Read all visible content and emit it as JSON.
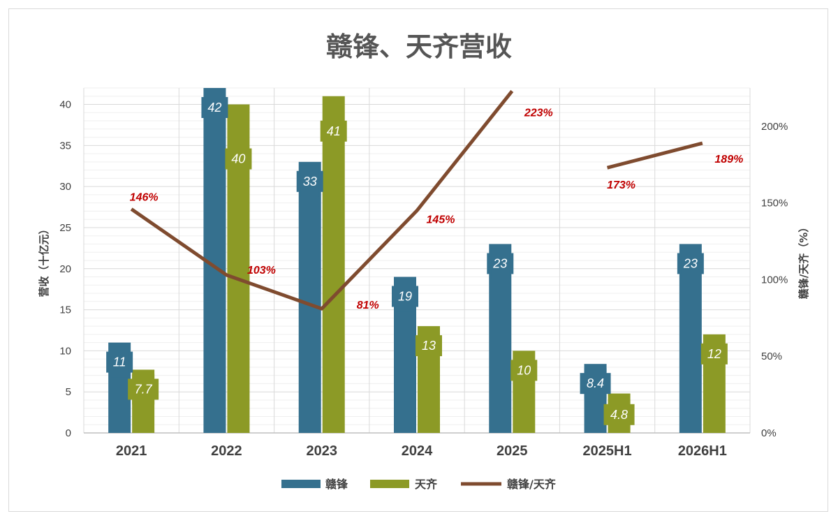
{
  "chart_data": {
    "type": "bar",
    "title": "赣锋、天齐营收",
    "ylabel": "营收（十亿元）",
    "y2label": "赣锋/天齐（%）",
    "ylim": [
      0,
      42
    ],
    "y2lim": [
      0,
      225
    ],
    "yticks": [
      "0",
      "5",
      "10",
      "15",
      "20",
      "25",
      "30",
      "35",
      "40"
    ],
    "y2ticks": [
      "0%",
      "50%",
      "100%",
      "150%",
      "200%"
    ],
    "categories": [
      "2021",
      "2022",
      "2023",
      "2024",
      "2025",
      "2025H1",
      "2026H1"
    ],
    "series": [
      {
        "name": "赣锋",
        "type": "bar",
        "color": "#35708e",
        "values": [
          11,
          42,
          33,
          19,
          23,
          8.4,
          23
        ],
        "labels": [
          "11",
          "42",
          "33",
          "19",
          "23",
          "8.4",
          "23"
        ]
      },
      {
        "name": "天齐",
        "type": "bar",
        "color": "#8c9a26",
        "values": [
          7.7,
          40,
          41,
          13,
          10,
          4.8,
          12
        ],
        "labels": [
          "7.7",
          "40",
          "41",
          "13",
          "10",
          "4.8",
          "12"
        ]
      },
      {
        "name": "赣锋/天齐",
        "type": "line",
        "axis": "right",
        "color": "#7f4b2f",
        "values": [
          146,
          103,
          81,
          145,
          223,
          173,
          189
        ],
        "labels": [
          "146%",
          "103%",
          "81%",
          "145%",
          "223%",
          "173%",
          "189%"
        ],
        "segments": [
          [
            0,
            4
          ],
          [
            5,
            6
          ]
        ]
      }
    ],
    "legend": "bottom",
    "grid": true
  }
}
